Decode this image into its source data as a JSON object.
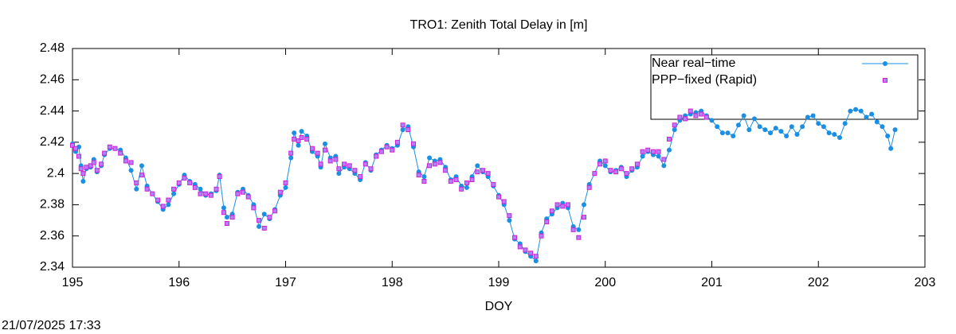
{
  "chart_data": {
    "type": "line",
    "title": "TRO1: Zenith Total Delay in [m]",
    "xlabel": "DOY",
    "timestamp": "21/07/2025 17:33",
    "xlim": [
      195,
      203
    ],
    "xticks": [
      195,
      196,
      197,
      198,
      199,
      200,
      201,
      202,
      203
    ],
    "ylim": [
      2.34,
      2.48
    ],
    "yticks": [
      2.34,
      2.36,
      2.38,
      2.4,
      2.42,
      2.44,
      2.46,
      2.48
    ],
    "legend": "top-right",
    "series": [
      {
        "name": "Near real−time",
        "color": "#1a8fe3",
        "marker": "circle",
        "x": [
          195.0,
          195.03,
          195.06,
          195.08,
          195.1,
          195.13,
          195.17,
          195.2,
          195.23,
          195.27,
          195.3,
          195.35,
          195.4,
          195.45,
          195.5,
          195.55,
          195.6,
          195.65,
          195.7,
          195.75,
          195.8,
          195.85,
          195.9,
          195.95,
          196.0,
          196.05,
          196.1,
          196.15,
          196.2,
          196.25,
          196.3,
          196.35,
          196.38,
          196.42,
          196.45,
          196.5,
          196.55,
          196.6,
          196.65,
          196.7,
          196.75,
          196.8,
          196.85,
          196.9,
          196.95,
          197.0,
          197.05,
          197.08,
          197.12,
          197.15,
          197.2,
          197.25,
          197.3,
          197.33,
          197.37,
          197.42,
          197.47,
          197.5,
          197.55,
          197.6,
          197.65,
          197.7,
          197.75,
          197.8,
          197.85,
          197.9,
          197.95,
          198.0,
          198.05,
          198.1,
          198.15,
          198.2,
          198.25,
          198.3,
          198.35,
          198.4,
          198.45,
          198.5,
          198.55,
          198.6,
          198.65,
          198.7,
          198.75,
          198.8,
          198.85,
          198.9,
          198.95,
          199.0,
          199.05,
          199.1,
          199.15,
          199.2,
          199.25,
          199.3,
          199.35,
          199.4,
          199.45,
          199.5,
          199.55,
          199.6,
          199.65,
          199.7,
          199.75,
          199.8,
          199.85,
          199.9,
          199.95,
          200.0,
          200.05,
          200.1,
          200.15,
          200.2,
          200.25,
          200.3,
          200.35,
          200.4,
          200.45,
          200.5,
          200.55,
          200.6,
          200.65,
          200.7,
          200.75,
          200.8,
          200.85,
          200.9,
          200.95,
          201.0,
          201.05,
          201.1,
          201.15,
          201.2,
          201.25,
          201.3,
          201.35,
          201.4,
          201.45,
          201.5,
          201.55,
          201.6,
          201.65,
          201.7,
          201.75,
          201.8,
          201.85,
          201.9,
          201.95,
          202.0,
          202.05,
          202.1,
          202.15,
          202.2,
          202.25,
          202.3,
          202.35,
          202.4,
          202.45,
          202.5,
          202.55,
          202.6,
          202.65,
          202.68,
          202.72
        ],
        "values": [
          2.419,
          2.414,
          2.417,
          2.405,
          2.395,
          2.403,
          2.404,
          2.409,
          2.401,
          2.405,
          2.412,
          2.416,
          2.416,
          2.415,
          2.41,
          2.402,
          2.39,
          2.405,
          2.392,
          2.387,
          2.382,
          2.377,
          2.38,
          2.387,
          2.393,
          2.399,
          2.395,
          2.393,
          2.39,
          2.386,
          2.387,
          2.389,
          2.399,
          2.378,
          2.372,
          2.374,
          2.388,
          2.39,
          2.386,
          2.38,
          2.366,
          2.374,
          2.371,
          2.377,
          2.386,
          2.391,
          2.41,
          2.426,
          2.418,
          2.427,
          2.424,
          2.414,
          2.411,
          2.404,
          2.419,
          2.41,
          2.411,
          2.4,
          2.404,
          2.403,
          2.4,
          2.396,
          2.407,
          2.402,
          2.412,
          2.415,
          2.418,
          2.416,
          2.418,
          2.428,
          2.43,
          2.417,
          2.401,
          2.398,
          2.41,
          2.408,
          2.409,
          2.404,
          2.396,
          2.398,
          2.392,
          2.391,
          2.398,
          2.405,
          2.401,
          2.398,
          2.392,
          2.386,
          2.38,
          2.37,
          2.358,
          2.355,
          2.35,
          2.347,
          2.344,
          2.362,
          2.371,
          2.374,
          2.378,
          2.381,
          2.378,
          2.366,
          2.364,
          2.38,
          2.393,
          2.4,
          2.408,
          2.405,
          2.401,
          2.402,
          2.404,
          2.398,
          2.402,
          2.404,
          2.411,
          2.414,
          2.412,
          2.411,
          2.405,
          2.415,
          2.428,
          2.434,
          2.437,
          2.438,
          2.439,
          2.44,
          2.437,
          2.434,
          2.43,
          2.426,
          2.426,
          2.424,
          2.431,
          2.437,
          2.428,
          2.435,
          2.43,
          2.428,
          2.426,
          2.429,
          2.427,
          2.424,
          2.43,
          2.425,
          2.43,
          2.436,
          2.437,
          2.432,
          2.43,
          2.426,
          2.425,
          2.423,
          2.432,
          2.44,
          2.441,
          2.44,
          2.436,
          2.438,
          2.433,
          2.43,
          2.424,
          2.416,
          2.428
        ]
      },
      {
        "name": "PPP−fixed (Rapid)",
        "color": "#d020d0",
        "marker": "square",
        "x": [
          195.0,
          195.03,
          195.06,
          195.08,
          195.1,
          195.13,
          195.17,
          195.2,
          195.23,
          195.27,
          195.3,
          195.35,
          195.4,
          195.45,
          195.5,
          195.55,
          195.6,
          195.65,
          195.7,
          195.75,
          195.8,
          195.85,
          195.9,
          195.95,
          196.0,
          196.05,
          196.1,
          196.15,
          196.2,
          196.25,
          196.3,
          196.35,
          196.38,
          196.42,
          196.45,
          196.5,
          196.55,
          196.6,
          196.65,
          196.7,
          196.75,
          196.8,
          196.85,
          196.9,
          196.95,
          197.0,
          197.05,
          197.08,
          197.12,
          197.15,
          197.2,
          197.25,
          197.3,
          197.33,
          197.37,
          197.42,
          197.47,
          197.5,
          197.55,
          197.6,
          197.65,
          197.7,
          197.75,
          197.8,
          197.85,
          197.9,
          197.95,
          198.0,
          198.05,
          198.1,
          198.15,
          198.2,
          198.25,
          198.3,
          198.35,
          198.4,
          198.45,
          198.5,
          198.55,
          198.6,
          198.65,
          198.7,
          198.75,
          198.8,
          198.85,
          198.9,
          198.95,
          199.0,
          199.05,
          199.1,
          199.15,
          199.2,
          199.25,
          199.3,
          199.35,
          199.4,
          199.45,
          199.5,
          199.55,
          199.6,
          199.65,
          199.7,
          199.75,
          199.8,
          199.85,
          199.9,
          199.95,
          200.0,
          200.05,
          200.1,
          200.15,
          200.2,
          200.25,
          200.3,
          200.35,
          200.4,
          200.45,
          200.5,
          200.55,
          200.6,
          200.65,
          200.7,
          200.75,
          200.8,
          200.85,
          200.9,
          200.95
        ],
        "values": [
          2.418,
          2.416,
          2.411,
          2.403,
          2.4,
          2.404,
          2.405,
          2.407,
          2.402,
          2.406,
          2.413,
          2.417,
          2.416,
          2.413,
          2.408,
          2.407,
          2.394,
          2.399,
          2.39,
          2.387,
          2.383,
          2.379,
          2.383,
          2.39,
          2.394,
          2.397,
          2.394,
          2.391,
          2.387,
          2.387,
          2.386,
          2.39,
          2.398,
          2.375,
          2.368,
          2.372,
          2.387,
          2.388,
          2.385,
          2.378,
          2.37,
          2.365,
          2.372,
          2.376,
          2.388,
          2.394,
          2.413,
          2.422,
          2.421,
          2.423,
          2.422,
          2.416,
          2.413,
          2.406,
          2.415,
          2.408,
          2.409,
          2.403,
          2.406,
          2.405,
          2.402,
          2.398,
          2.406,
          2.403,
          2.411,
          2.414,
          2.417,
          2.415,
          2.42,
          2.431,
          2.428,
          2.419,
          2.399,
          2.395,
          2.405,
          2.406,
          2.407,
          2.402,
          2.395,
          2.396,
          2.39,
          2.394,
          2.396,
          2.401,
          2.402,
          2.4,
          2.393,
          2.385,
          2.382,
          2.373,
          2.359,
          2.353,
          2.351,
          2.349,
          2.347,
          2.36,
          2.369,
          2.376,
          2.38,
          2.379,
          2.38,
          2.364,
          2.359,
          2.372,
          2.391,
          2.4,
          2.406,
          2.408,
          2.402,
          2.401,
          2.403,
          2.4,
          2.403,
          2.406,
          2.414,
          2.415,
          2.414,
          2.414,
          2.409,
          2.422,
          2.431,
          2.436,
          2.435,
          2.44,
          2.437,
          2.438,
          2.436
        ]
      }
    ]
  }
}
